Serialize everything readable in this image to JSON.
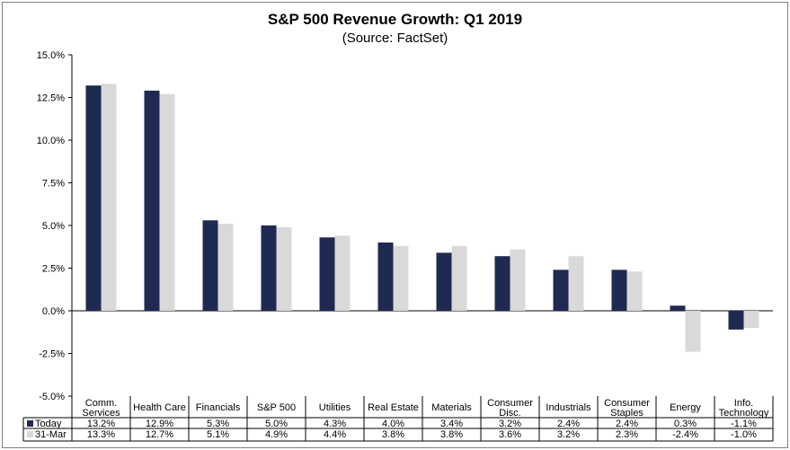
{
  "chart_data": {
    "type": "bar",
    "title": "S&P 500 Revenue Growth: Q1 2019",
    "subtitle": "(Source: FactSet)",
    "categories": [
      [
        "Comm.",
        "Services"
      ],
      [
        "Health Care"
      ],
      [
        "Financials"
      ],
      [
        "S&P 500"
      ],
      [
        "Utilities"
      ],
      [
        "Real Estate"
      ],
      [
        "Materials"
      ],
      [
        "Consumer",
        "Disc."
      ],
      [
        "Industrials"
      ],
      [
        "Consumer",
        "Staples"
      ],
      [
        "Energy"
      ],
      [
        "Info.",
        "Technology"
      ]
    ],
    "series": [
      {
        "name": "Today",
        "color": "#1f2a52",
        "values": [
          13.2,
          12.9,
          5.3,
          5.0,
          4.3,
          4.0,
          3.4,
          3.2,
          2.4,
          2.4,
          0.3,
          -1.1
        ],
        "labels": [
          "13.2%",
          "12.9%",
          "5.3%",
          "5.0%",
          "4.3%",
          "4.0%",
          "3.4%",
          "3.2%",
          "2.4%",
          "2.4%",
          "0.3%",
          "-1.1%"
        ]
      },
      {
        "name": "31-Mar",
        "color": "#d9d9d9",
        "values": [
          13.3,
          12.7,
          5.1,
          4.9,
          4.4,
          3.8,
          3.8,
          3.6,
          3.2,
          2.3,
          -2.4,
          -1.0
        ],
        "labels": [
          "13.3%",
          "12.7%",
          "5.1%",
          "4.9%",
          "4.4%",
          "3.8%",
          "3.8%",
          "3.6%",
          "3.2%",
          "2.3%",
          "-2.4%",
          "-1.0%"
        ]
      }
    ],
    "ylim": [
      -5.0,
      15.0
    ],
    "yticks": [
      15.0,
      12.5,
      10.0,
      7.5,
      5.0,
      2.5,
      0.0,
      -2.5,
      -5.0
    ],
    "ytick_labels": [
      "15.0%",
      "12.5%",
      "10.0%",
      "7.5%",
      "5.0%",
      "2.5%",
      "0.0%",
      "-2.5%",
      "-5.0%"
    ],
    "grid": false,
    "legend": "data-table"
  }
}
